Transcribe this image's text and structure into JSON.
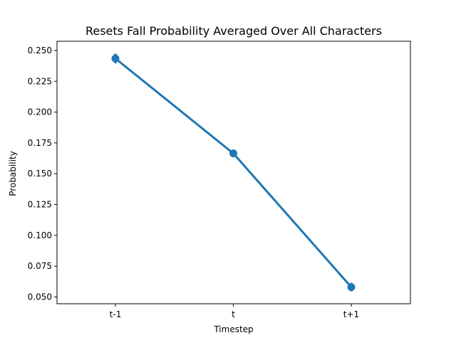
{
  "chart_data": {
    "type": "line",
    "title": "Resets Fall Probability Averaged Over All Characters",
    "xlabel": "Timestep",
    "ylabel": "Probability",
    "categories": [
      "t-1",
      "t",
      "t+1"
    ],
    "series": [
      {
        "values": [
          0.2435,
          0.1665,
          0.058
        ],
        "error_low": [
          0.2395,
          0.1645,
          0.0545
        ],
        "error_high": [
          0.2475,
          0.169,
          0.0615
        ],
        "color": "#1f77b4"
      }
    ],
    "ylim": [
      0.0445,
      0.2575
    ],
    "yticks": [
      0.05,
      0.075,
      0.1,
      0.125,
      0.15,
      0.175,
      0.2,
      0.225,
      0.25
    ],
    "ytick_labels": [
      "0.050",
      "0.075",
      "0.100",
      "0.125",
      "0.150",
      "0.175",
      "0.200",
      "0.225",
      "0.250"
    ],
    "grid": false,
    "legend": "none"
  }
}
